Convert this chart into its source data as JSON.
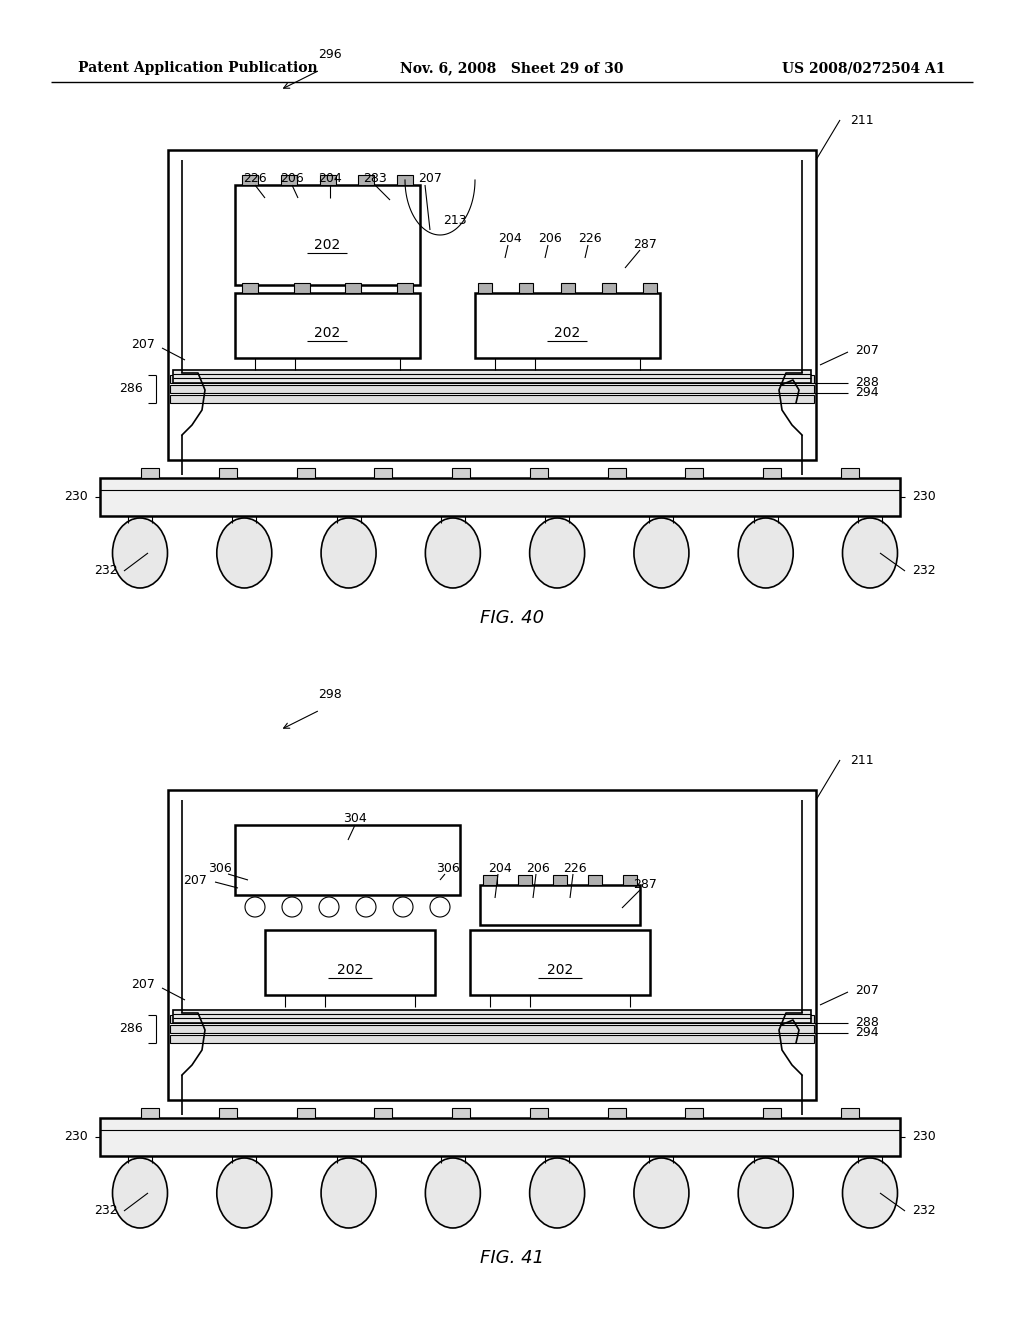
{
  "bg_color": "#ffffff",
  "line_color": "#000000",
  "fig_width": 10.24,
  "fig_height": 13.2,
  "header": {
    "left": "Patent Application Publication",
    "center": "Nov. 6, 2008   Sheet 29 of 30",
    "right": "US 2008/0272504 A1",
    "fontsize": 10
  }
}
